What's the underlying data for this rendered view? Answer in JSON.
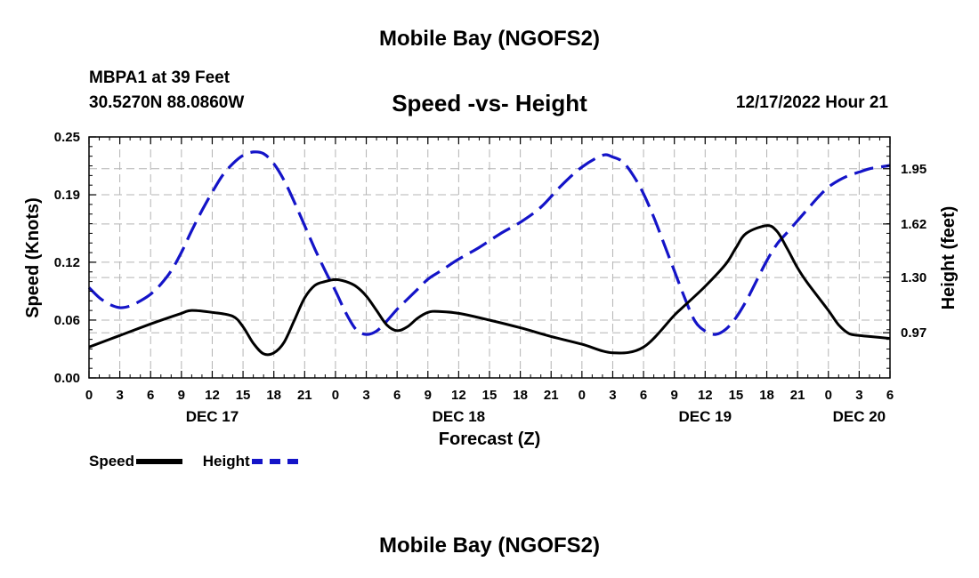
{
  "header": {
    "title": "Mobile Bay (NGOFS2)",
    "station": "MBPA1 at 39 Feet",
    "coords": "30.5270N  88.0860W",
    "subtitle": "Speed -vs- Height",
    "datetime": "12/17/2022 Hour 21"
  },
  "footer": {
    "title": "Mobile Bay (NGOFS2)"
  },
  "legend": {
    "speed_label": "Speed",
    "height_label": "Height"
  },
  "chart_data": {
    "type": "line",
    "xlabel": "Forecast (Z)",
    "ylabel": "Speed (Knots)",
    "y2label": "Height (feet)",
    "x_unit": "hours from DEC 17 00Z",
    "xlim": [
      0,
      78
    ],
    "ylim": [
      0,
      0.25
    ],
    "y2lim": [
      0.7,
      2.14
    ],
    "x_ticks": [
      0,
      3,
      6,
      9,
      12,
      15,
      18,
      21,
      24,
      27,
      30,
      33,
      36,
      39,
      42,
      45,
      48,
      51,
      54,
      57,
      60,
      63,
      66,
      69,
      72,
      75,
      78
    ],
    "x_tick_labels": [
      "0",
      "3",
      "6",
      "9",
      "12",
      "15",
      "18",
      "21",
      "0",
      "3",
      "6",
      "9",
      "12",
      "15",
      "18",
      "21",
      "0",
      "3",
      "6",
      "9",
      "12",
      "15",
      "18",
      "21",
      "0",
      "3",
      "6"
    ],
    "date_labels": [
      {
        "x": 12,
        "label": "DEC 17"
      },
      {
        "x": 36,
        "label": "DEC 18"
      },
      {
        "x": 60,
        "label": "DEC 19"
      },
      {
        "x": 75,
        "label": "DEC 20"
      }
    ],
    "y_ticks": [
      0,
      0.06,
      0.12,
      0.19,
      0.25
    ],
    "y_tick_labels": [
      "0.00",
      "0.06",
      "0.12",
      "0.19",
      "0.25"
    ],
    "y2_ticks": [
      0.97,
      1.3,
      1.62,
      1.95
    ],
    "y2_tick_labels": [
      "0.97",
      "1.30",
      "1.62",
      "1.95"
    ],
    "grid": true,
    "legend_position": "bottom-left",
    "colors": {
      "speed": "#000000",
      "height": "#1414c8",
      "grid": "#b4b4b4"
    },
    "series": [
      {
        "name": "Speed",
        "axis": "left",
        "style": "solid",
        "x": [
          0,
          3,
          6,
          9,
          10,
          12,
          14,
          15,
          16,
          17,
          18,
          19,
          20,
          21,
          22,
          23,
          24,
          25,
          26,
          27,
          28,
          29,
          30,
          31,
          32,
          33,
          34,
          36,
          39,
          42,
          45,
          48,
          51,
          54,
          57,
          58,
          60,
          62,
          63,
          64,
          66,
          67,
          68,
          69,
          70,
          72,
          73,
          74,
          75,
          76,
          78
        ],
        "y": [
          0.032,
          0.044,
          0.056,
          0.067,
          0.07,
          0.068,
          0.064,
          0.053,
          0.036,
          0.025,
          0.026,
          0.037,
          0.06,
          0.083,
          0.096,
          0.1,
          0.102,
          0.1,
          0.095,
          0.085,
          0.07,
          0.055,
          0.049,
          0.053,
          0.062,
          0.068,
          0.069,
          0.067,
          0.06,
          0.052,
          0.043,
          0.035,
          0.026,
          0.032,
          0.065,
          0.075,
          0.095,
          0.118,
          0.135,
          0.15,
          0.158,
          0.152,
          0.134,
          0.114,
          0.098,
          0.07,
          0.055,
          0.046,
          0.044,
          0.043,
          0.041
        ]
      },
      {
        "name": "Height",
        "axis": "right",
        "style": "dashed",
        "x": [
          0,
          1,
          2,
          3,
          4,
          5,
          6,
          7,
          8,
          9,
          10,
          11,
          12,
          13,
          14,
          15,
          16,
          17,
          18,
          19,
          20,
          21,
          22,
          23,
          24,
          25,
          26,
          27,
          28,
          29,
          30,
          31,
          32,
          33,
          34,
          35,
          36,
          38,
          40,
          42,
          44,
          46,
          48,
          50,
          51,
          52,
          53,
          54,
          55,
          56,
          57,
          58,
          59,
          60,
          61,
          62,
          63,
          64,
          65,
          66,
          67,
          68,
          69,
          70,
          71,
          72,
          73,
          74,
          75,
          76,
          77,
          78
        ],
        "y": [
          1.24,
          1.18,
          1.14,
          1.12,
          1.13,
          1.16,
          1.2,
          1.26,
          1.34,
          1.45,
          1.58,
          1.7,
          1.81,
          1.91,
          1.98,
          2.03,
          2.05,
          2.04,
          1.98,
          1.88,
          1.75,
          1.61,
          1.47,
          1.34,
          1.22,
          1.09,
          0.99,
          0.96,
          0.98,
          1.04,
          1.11,
          1.17,
          1.23,
          1.29,
          1.33,
          1.37,
          1.41,
          1.48,
          1.56,
          1.63,
          1.72,
          1.85,
          1.96,
          2.03,
          2.02,
          1.99,
          1.91,
          1.8,
          1.66,
          1.5,
          1.34,
          1.18,
          1.04,
          0.98,
          0.96,
          0.99,
          1.06,
          1.16,
          1.28,
          1.4,
          1.5,
          1.57,
          1.64,
          1.71,
          1.78,
          1.84,
          1.88,
          1.91,
          1.93,
          1.95,
          1.96,
          1.97
        ]
      }
    ]
  }
}
